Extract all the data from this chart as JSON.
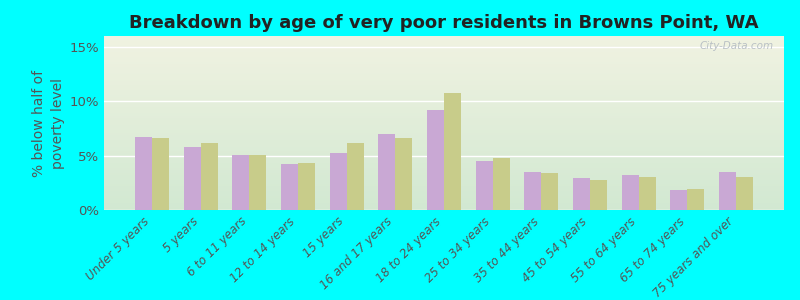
{
  "title": "Breakdown by age of very poor residents in Browns Point, WA",
  "ylabel": "% below half of\npoverty level",
  "categories": [
    "Under 5 years",
    "5 years",
    "6 to 11 years",
    "12 to 14 years",
    "15 years",
    "16 and 17 years",
    "18 to 24 years",
    "25 to 34 years",
    "35 to 44 years",
    "45 to 54 years",
    "55 to 64 years",
    "65 to 74 years",
    "75 years and over"
  ],
  "browns_point": [
    6.7,
    5.8,
    5.1,
    4.2,
    5.2,
    7.0,
    9.2,
    4.5,
    3.5,
    2.9,
    3.2,
    1.8,
    3.5
  ],
  "washington": [
    6.6,
    6.2,
    5.1,
    4.3,
    6.2,
    6.6,
    10.8,
    4.8,
    3.4,
    2.8,
    3.0,
    1.9,
    3.0
  ],
  "browns_point_color": "#c9a8d4",
  "washington_color": "#c8cc8a",
  "background_color": "#00ffff",
  "yticks": [
    0,
    5,
    10,
    15
  ],
  "ytick_labels": [
    "0%",
    "5%",
    "10%",
    "15%"
  ],
  "ylim": [
    0,
    16
  ],
  "bar_width": 0.35,
  "title_fontsize": 13,
  "axis_fontsize": 9,
  "tick_fontsize": 8.5,
  "legend_fontsize": 10,
  "watermark": "City-Data.com"
}
